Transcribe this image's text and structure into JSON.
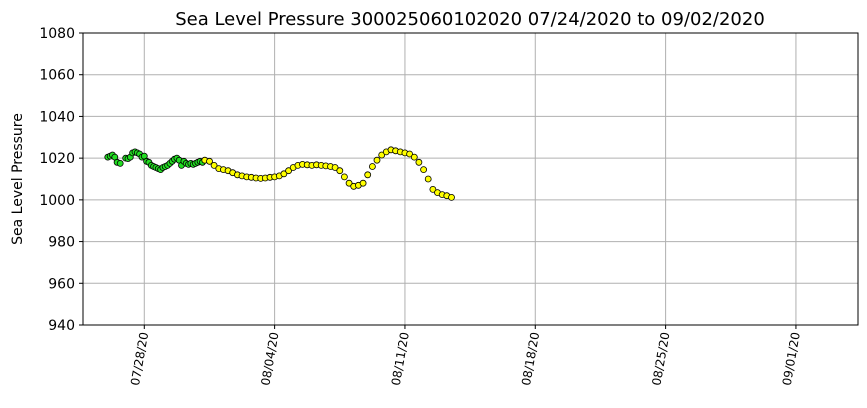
{
  "chart_data": {
    "type": "scatter",
    "title": "Sea Level Pressure 300025060102020  07/24/2020 to 09/02/2020",
    "xlabel": "",
    "ylabel": "Sea Level Pressure",
    "ylim": [
      940,
      1080
    ],
    "yticks": [
      940,
      960,
      980,
      1000,
      1020,
      1040,
      1060,
      1080
    ],
    "xlim": [
      "2020-07-24T17:00",
      "2020-09-04T08:00"
    ],
    "xticks": [
      "2020-07-28",
      "2020-08-04",
      "2020-08-11",
      "2020-08-18",
      "2020-08-25",
      "2020-09-01"
    ],
    "xtick_labels": [
      "07/28/20",
      "08/04/20",
      "08/11/20",
      "08/18/20",
      "08/25/20",
      "09/01/20"
    ],
    "grid": true,
    "marker_edge_color": "#000000",
    "series": [
      {
        "color": "#22dd22",
        "x": [
          "2020-07-26T01:00",
          "2020-07-26T04:00",
          "2020-07-26T07:00",
          "2020-07-26T10:00",
          "2020-07-26T13:00",
          "2020-07-26T17:00",
          "2020-07-27T00:00",
          "2020-07-27T03:00",
          "2020-07-27T06:00",
          "2020-07-27T09:00",
          "2020-07-27T12:00",
          "2020-07-27T15:00",
          "2020-07-27T18:00",
          "2020-07-27T21:00",
          "2020-07-28T00:00",
          "2020-07-28T03:00",
          "2020-07-28T06:00",
          "2020-07-28T09:00",
          "2020-07-28T12:00",
          "2020-07-28T15:00",
          "2020-07-28T18:00",
          "2020-07-28T21:00",
          "2020-07-29T00:00",
          "2020-07-29T03:00",
          "2020-07-29T06:00",
          "2020-07-29T09:00",
          "2020-07-29T12:00",
          "2020-07-29T15:00",
          "2020-07-29T18:00",
          "2020-07-29T21:00",
          "2020-07-30T00:00",
          "2020-07-30T03:00",
          "2020-07-30T06:00",
          "2020-07-30T09:00",
          "2020-07-30T12:00",
          "2020-07-30T15:00",
          "2020-07-30T18:00",
          "2020-07-30T21:00",
          "2020-07-31T00:00",
          "2020-07-31T03:00"
        ],
        "y": [
          1020.5,
          1021,
          1021.5,
          1020.5,
          1018,
          1017.5,
          1020,
          1019.8,
          1020.5,
          1022.5,
          1023,
          1022.5,
          1022,
          1020.5,
          1021,
          1018.5,
          1018,
          1016.5,
          1016,
          1015.5,
          1015,
          1014.5,
          1015.5,
          1016,
          1016.5,
          1017.5,
          1018.5,
          1019.5,
          1020,
          1019,
          1016.5,
          1018.5,
          1017.5,
          1017,
          1017.5,
          1017,
          1017.5,
          1018,
          1018.5,
          1018
        ]
      },
      {
        "color": "#ffff00",
        "x": [
          "2020-07-31T06:00",
          "2020-07-31T12:00",
          "2020-07-31T18:00",
          "2020-08-01T00:00",
          "2020-08-01T06:00",
          "2020-08-01T12:00",
          "2020-08-01T18:00",
          "2020-08-02T00:00",
          "2020-08-02T06:00",
          "2020-08-02T12:00",
          "2020-08-02T18:00",
          "2020-08-03T00:00",
          "2020-08-03T06:00",
          "2020-08-03T12:00",
          "2020-08-03T18:00",
          "2020-08-04T00:00",
          "2020-08-04T06:00",
          "2020-08-04T12:00",
          "2020-08-04T18:00",
          "2020-08-05T00:00",
          "2020-08-05T06:00",
          "2020-08-05T12:00",
          "2020-08-05T18:00",
          "2020-08-06T00:00",
          "2020-08-06T06:00",
          "2020-08-06T12:00",
          "2020-08-06T18:00",
          "2020-08-07T00:00",
          "2020-08-07T06:00",
          "2020-08-07T12:00",
          "2020-08-07T18:00",
          "2020-08-08T00:00",
          "2020-08-08T06:00",
          "2020-08-08T12:00",
          "2020-08-08T18:00",
          "2020-08-09T00:00",
          "2020-08-09T06:00",
          "2020-08-09T12:00",
          "2020-08-09T18:00",
          "2020-08-10T00:00",
          "2020-08-10T06:00",
          "2020-08-10T12:00",
          "2020-08-10T18:00",
          "2020-08-11T00:00",
          "2020-08-11T06:00",
          "2020-08-11T12:00",
          "2020-08-11T18:00",
          "2020-08-12T00:00",
          "2020-08-12T06:00",
          "2020-08-12T12:00",
          "2020-08-12T18:00",
          "2020-08-13T00:00",
          "2020-08-13T06:00",
          "2020-08-13T12:00"
        ],
        "y": [
          1019,
          1018.5,
          1016.5,
          1015,
          1014.5,
          1014,
          1013,
          1012,
          1011.5,
          1011,
          1010.8,
          1010.5,
          1010.3,
          1010.5,
          1010.8,
          1011,
          1011.5,
          1012.5,
          1014,
          1015.5,
          1016.5,
          1017,
          1016.8,
          1016.5,
          1016.8,
          1016.5,
          1016.3,
          1016,
          1015.5,
          1014,
          1011,
          1008,
          1006.5,
          1007,
          1008,
          1012,
          1016,
          1019,
          1021.5,
          1023,
          1024,
          1023.5,
          1023,
          1022.5,
          1022,
          1020.5,
          1018,
          1014.5,
          1010,
          1005,
          1003.5,
          1002.5,
          1002,
          1001.2
        ]
      }
    ]
  }
}
